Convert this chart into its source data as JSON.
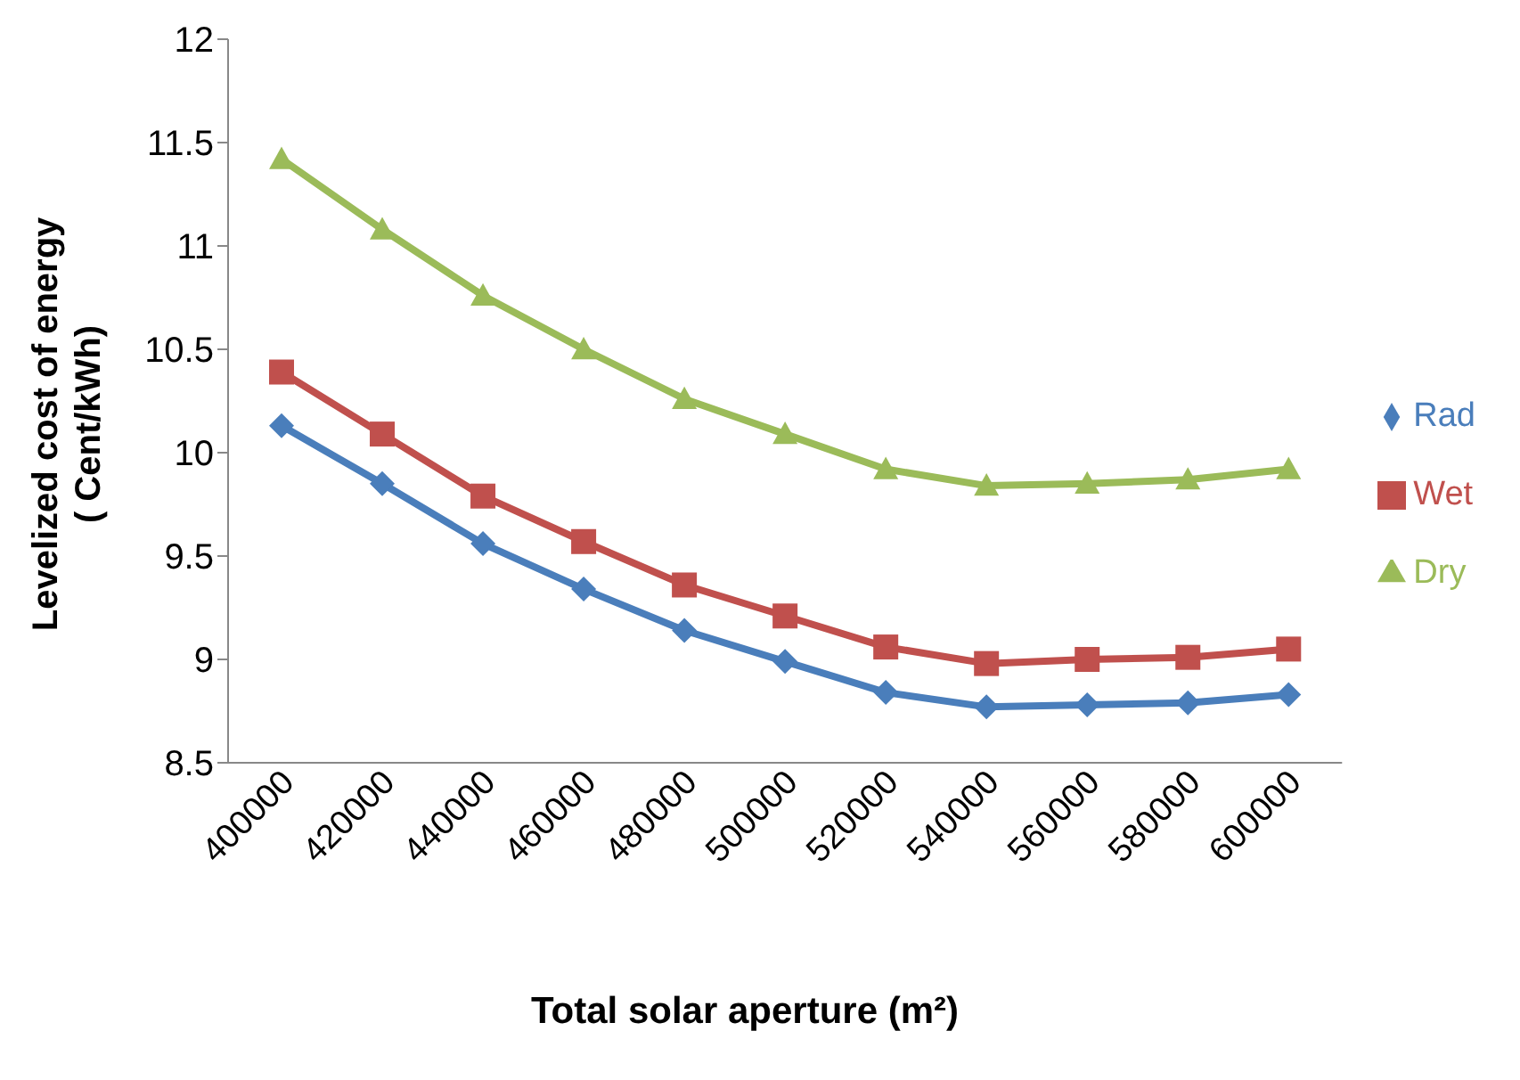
{
  "chart_data": {
    "type": "line",
    "xlabel": "Total solar aperture (m²)",
    "ylabel": "Levelized cost of energy\n( Cent/kWh)",
    "categories": [
      "400000",
      "420000",
      "440000",
      "460000",
      "480000",
      "500000",
      "520000",
      "540000",
      "560000",
      "580000",
      "600000"
    ],
    "series": [
      {
        "name": "Rad",
        "color": "#4a7ebb",
        "marker": "diamond",
        "values": [
          10.13,
          9.85,
          9.56,
          9.34,
          9.14,
          8.99,
          8.84,
          8.77,
          8.78,
          8.79,
          8.83
        ]
      },
      {
        "name": "Wet",
        "color": "#c0504d",
        "marker": "square",
        "values": [
          10.39,
          10.09,
          9.79,
          9.57,
          9.36,
          9.21,
          9.06,
          8.98,
          9.0,
          9.01,
          9.05
        ]
      },
      {
        "name": "Dry",
        "color": "#9bbb59",
        "marker": "triangle",
        "values": [
          11.42,
          11.08,
          10.76,
          10.5,
          10.26,
          10.09,
          9.92,
          9.84,
          9.85,
          9.87,
          9.92
        ]
      }
    ],
    "ylim": [
      8.5,
      12
    ],
    "yticks": [
      8.5,
      9,
      9.5,
      10,
      10.5,
      11,
      11.5,
      12
    ],
    "grid": false,
    "legend": "right",
    "line_style": "solid"
  }
}
